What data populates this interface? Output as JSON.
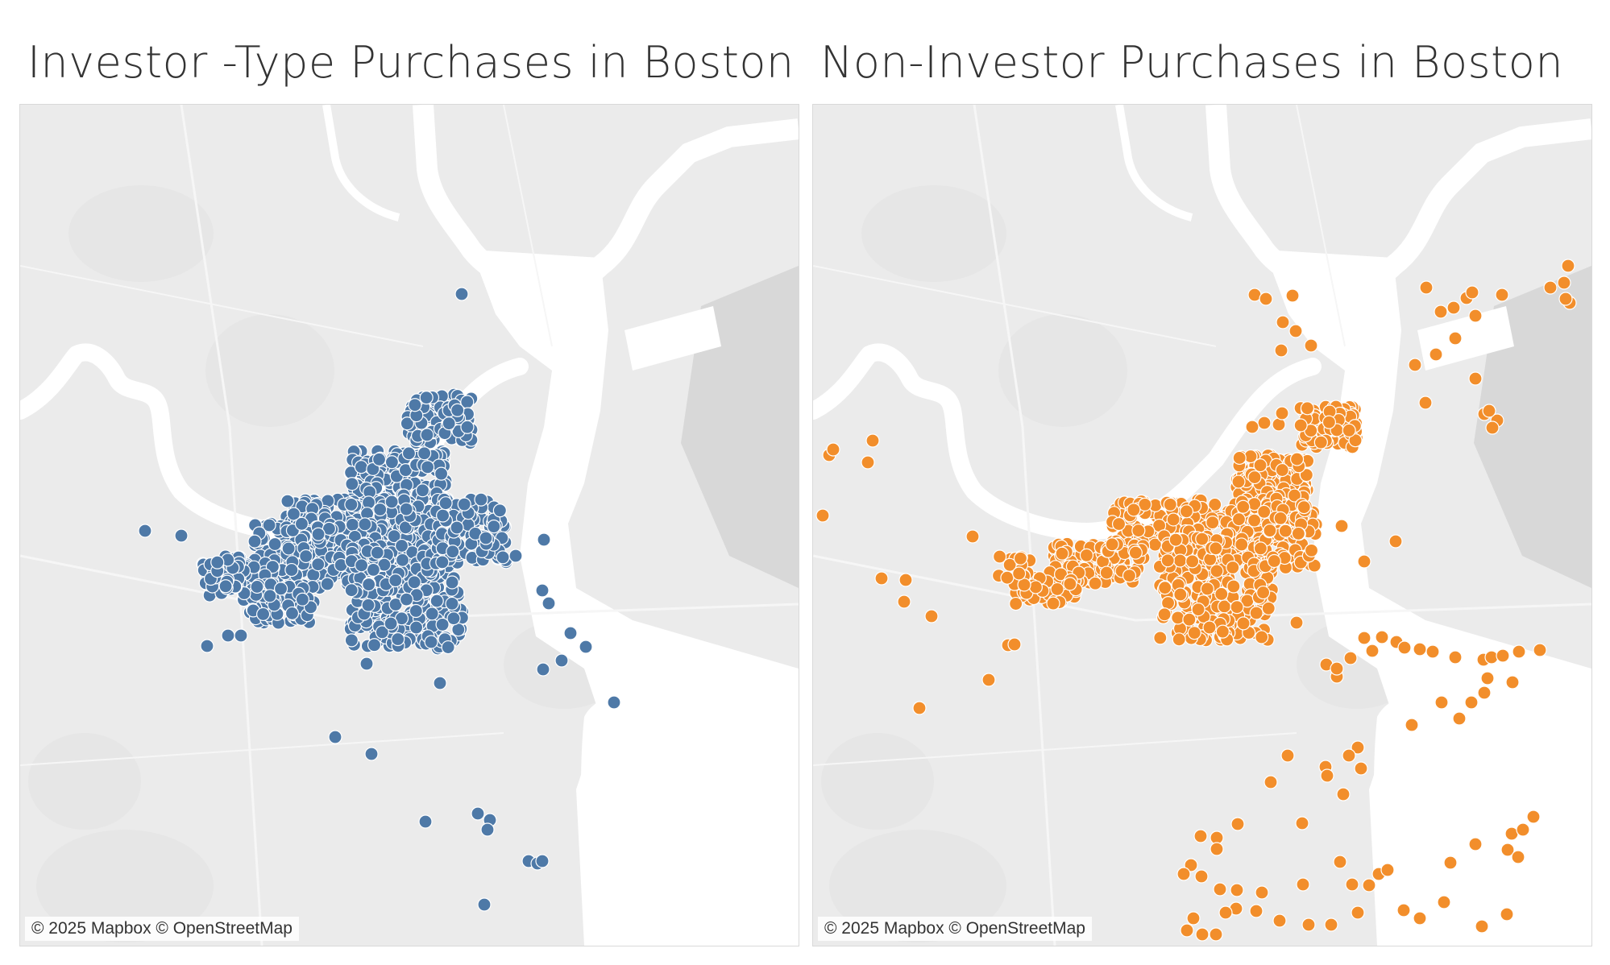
{
  "maps": [
    {
      "id": "investor",
      "title": "Investor -Type Purchases in Boston",
      "attribution": "© 2025 Mapbox © OpenStreetMap",
      "point_color": "#4e79a7",
      "icon": "map-basemap"
    },
    {
      "id": "non-investor",
      "title": "Non-Investor Purchases in Boston",
      "attribution": "© 2025 Mapbox © OpenStreetMap",
      "point_color": "#f28e2b",
      "icon": "map-basemap"
    }
  ],
  "colors": {
    "land": "#ebebeb",
    "water": "#ffffff",
    "park": "#e2e2e2",
    "airport": "#d8d8d8"
  }
}
